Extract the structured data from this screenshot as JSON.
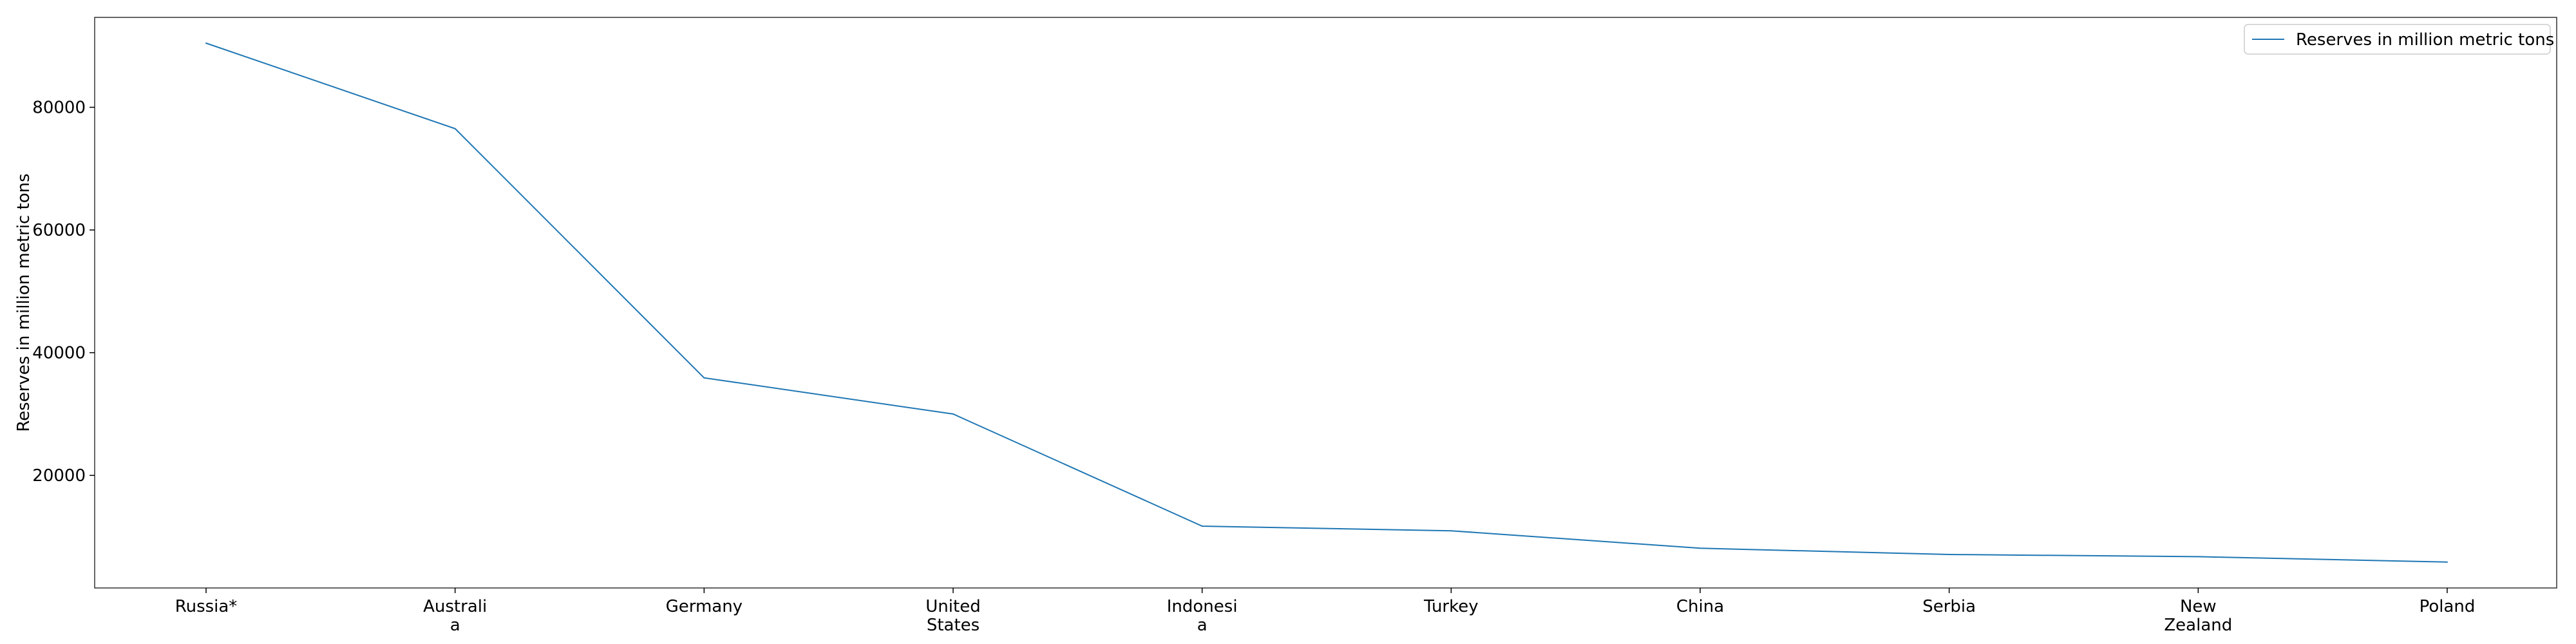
{
  "chart_data": {
    "type": "line",
    "title": "",
    "xlabel": "",
    "ylabel": "Reserves in million metric tons",
    "categories": [
      [
        "Russia*"
      ],
      [
        "Australi",
        "a"
      ],
      [
        "Germany"
      ],
      [
        "United",
        "States"
      ],
      [
        "Indonesi",
        "a"
      ],
      [
        "Turkey"
      ],
      [
        "China"
      ],
      [
        "Serbia"
      ],
      [
        "New",
        "Zealand"
      ],
      [
        "Poland"
      ]
    ],
    "series": [
      {
        "name": "Reserves in million metric tons",
        "color": "#1f77b4",
        "values": [
          90447,
          76508,
          35900,
          30003,
          11728,
          10975,
          8128,
          7112,
          6750,
          5865
        ]
      }
    ],
    "ylim": [
      1650,
      94650
    ],
    "yticks": [
      20000,
      40000,
      60000,
      80000
    ],
    "grid": false,
    "legend_position": "top-right"
  }
}
